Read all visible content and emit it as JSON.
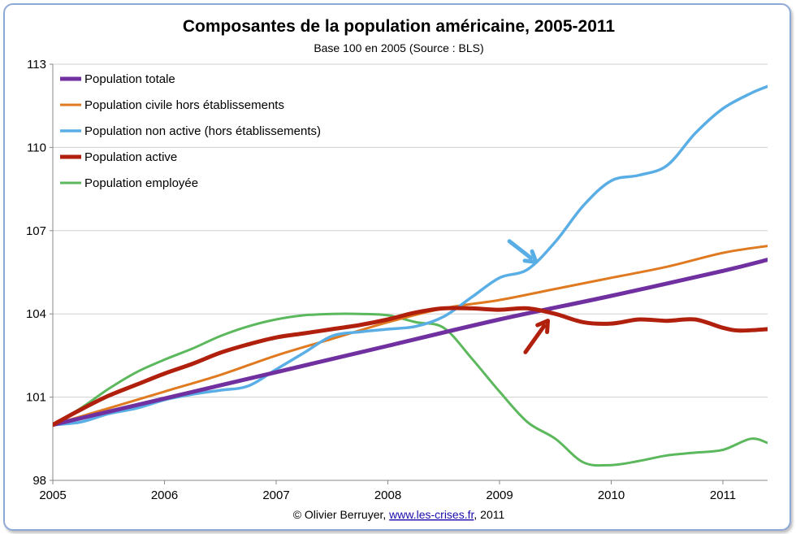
{
  "chart_data": {
    "type": "line",
    "title": "Composantes de la population américaine, 2005-2011",
    "subtitle": "Base 100 en 2005 (Source : BLS)",
    "xlabel": "",
    "ylabel": "",
    "xlim": [
      2005,
      2011.4
    ],
    "ylim": [
      98,
      113
    ],
    "x_ticks": [
      "2005",
      "2006",
      "2007",
      "2008",
      "2009",
      "2010",
      "2011"
    ],
    "y_ticks": [
      "98",
      "101",
      "104",
      "107",
      "110",
      "113"
    ],
    "grid": "horizontal",
    "legend_position": "top-left",
    "series": [
      {
        "name": "Population totale",
        "color": "#7030a0",
        "x": [
          2005,
          2006,
          2007,
          2008,
          2009,
          2010,
          2011,
          2011.4
        ],
        "values": [
          100.0,
          100.95,
          101.9,
          102.85,
          103.8,
          104.65,
          105.55,
          105.95
        ]
      },
      {
        "name": "Population civile hors établissements",
        "color": "#e07a20",
        "x": [
          2005,
          2005.5,
          2006,
          2006.5,
          2007,
          2007.5,
          2008,
          2008.5,
          2009,
          2009.5,
          2010,
          2010.5,
          2011,
          2011.4
        ],
        "values": [
          100.0,
          100.6,
          101.2,
          101.8,
          102.5,
          103.1,
          103.7,
          104.2,
          104.5,
          104.9,
          105.3,
          105.7,
          106.2,
          106.45
        ]
      },
      {
        "name": "Population non active (hors établissements)",
        "color": "#5aaee6",
        "x": [
          2005,
          2005.25,
          2005.5,
          2005.75,
          2006,
          2006.25,
          2006.5,
          2006.75,
          2007,
          2007.25,
          2007.5,
          2007.75,
          2008,
          2008.25,
          2008.5,
          2008.75,
          2009,
          2009.25,
          2009.5,
          2009.75,
          2010,
          2010.25,
          2010.5,
          2010.75,
          2011,
          2011.25,
          2011.4
        ],
        "values": [
          100.0,
          100.1,
          100.4,
          100.6,
          100.9,
          101.1,
          101.25,
          101.4,
          102.0,
          102.6,
          103.2,
          103.35,
          103.45,
          103.55,
          103.9,
          104.6,
          105.3,
          105.6,
          106.6,
          107.9,
          108.8,
          109.0,
          109.35,
          110.5,
          111.4,
          111.95,
          112.2
        ]
      },
      {
        "name": "Population active",
        "color": "#b0200c",
        "x": [
          2005,
          2005.25,
          2005.5,
          2005.75,
          2006,
          2006.25,
          2006.5,
          2006.75,
          2007,
          2007.25,
          2007.5,
          2007.75,
          2008,
          2008.25,
          2008.5,
          2008.75,
          2009,
          2009.25,
          2009.5,
          2009.75,
          2010,
          2010.25,
          2010.5,
          2010.75,
          2011,
          2011.15,
          2011.4
        ],
        "values": [
          100.0,
          100.55,
          101.05,
          101.45,
          101.85,
          102.2,
          102.6,
          102.9,
          103.15,
          103.3,
          103.45,
          103.6,
          103.8,
          104.05,
          104.2,
          104.2,
          104.15,
          104.2,
          104.0,
          103.7,
          103.65,
          103.8,
          103.75,
          103.8,
          103.5,
          103.4,
          103.45
        ]
      },
      {
        "name": "Population employée",
        "color": "#5cb85c",
        "x": [
          2005,
          2005.25,
          2005.5,
          2005.75,
          2006,
          2006.25,
          2006.5,
          2006.75,
          2007,
          2007.25,
          2007.5,
          2007.75,
          2008,
          2008.25,
          2008.5,
          2008.75,
          2009,
          2009.25,
          2009.5,
          2009.75,
          2010,
          2010.25,
          2010.5,
          2010.75,
          2011,
          2011.25,
          2011.4
        ],
        "values": [
          100.0,
          100.6,
          101.3,
          101.9,
          102.35,
          102.75,
          103.2,
          103.55,
          103.8,
          103.95,
          104.0,
          104.0,
          103.95,
          103.7,
          103.5,
          102.4,
          101.2,
          100.1,
          99.5,
          98.65,
          98.55,
          98.7,
          98.9,
          99.0,
          99.1,
          99.5,
          99.35
        ]
      }
    ],
    "annotations": [
      {
        "type": "arrow",
        "color": "#5aaee6",
        "points_to": {
          "series": "Population non active (hors établissements)",
          "x": 2009.35,
          "y": 105.8
        }
      },
      {
        "type": "arrow",
        "color": "#b0200c",
        "points_to": {
          "series": "Population active",
          "x": 2009.45,
          "y": 103.85
        }
      }
    ]
  },
  "credit": {
    "prefix": "© Olivier Berruyer, ",
    "link_text": "www.les-crises.fr",
    "suffix": ",  2011"
  }
}
